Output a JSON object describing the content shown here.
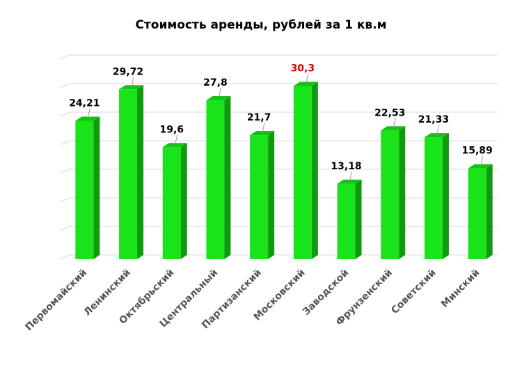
{
  "chart_data": {
    "type": "bar",
    "title": "Стоимость аренды, рублей за 1 кв.м",
    "categories": [
      "Первомайский",
      "Ленинский",
      "Октябрьский",
      "Центральный",
      "Партизанский",
      "Московский",
      "Заводской",
      "Фрунзенский",
      "Советский",
      "Минский"
    ],
    "values": [
      24.21,
      29.72,
      19.6,
      27.8,
      21.7,
      30.3,
      13.18,
      22.53,
      21.33,
      15.89
    ],
    "data_labels": [
      "24,21",
      "29,72",
      "19,6",
      "27,8",
      "21,7",
      "30,3",
      "13,18",
      "22,53",
      "21,33",
      "15,89"
    ],
    "highlight_index": 5,
    "ylim": [
      0,
      35
    ],
    "grid": true,
    "legend": "none",
    "bar_color": "#19e319",
    "bar_side_color": "#0f9a0f",
    "bar_top_color": "#13c313",
    "highlight_label_color": "#e00000",
    "label_color": "#000000",
    "axis_label_color": "#555555"
  }
}
